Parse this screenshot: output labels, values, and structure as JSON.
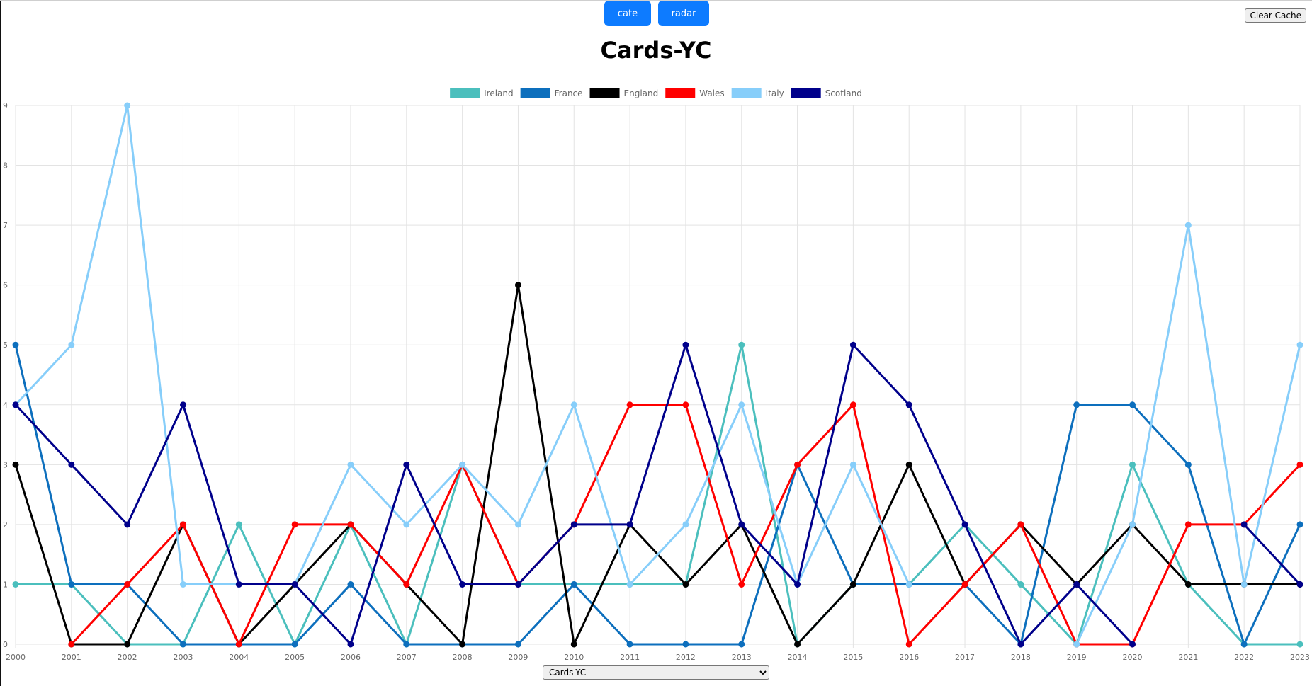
{
  "nav": {
    "cate_label": "cate",
    "radar_label": "radar"
  },
  "clear_cache_label": "Clear Cache",
  "title": "Cards-YC",
  "select": {
    "selected": "Cards-YC",
    "options": [
      "Cards-YC"
    ]
  },
  "chart_data": {
    "type": "line",
    "title": "Cards-YC",
    "xlabel": "",
    "ylabel": "",
    "ylim": [
      0,
      9
    ],
    "grid": true,
    "legend_position": "top",
    "x": [
      "2000",
      "2001",
      "2002",
      "2003",
      "2004",
      "2005",
      "2006",
      "2007",
      "2008",
      "2009",
      "2010",
      "2011",
      "2012",
      "2013",
      "2014",
      "2015",
      "2016",
      "2017",
      "2018",
      "2019",
      "2020",
      "2021",
      "2022",
      "2023"
    ],
    "series": [
      {
        "name": "Ireland",
        "color": "#4bbfbd",
        "values": [
          1,
          1,
          0,
          0,
          2,
          0,
          2,
          0,
          3,
          1,
          1,
          1,
          1,
          5,
          0,
          1,
          1,
          2,
          1,
          0,
          3,
          1,
          0,
          0
        ]
      },
      {
        "name": "France",
        "color": "#0d6fbd",
        "values": [
          5,
          1,
          1,
          0,
          0,
          0,
          1,
          0,
          0,
          0,
          1,
          0,
          0,
          0,
          3,
          1,
          1,
          1,
          0,
          4,
          4,
          3,
          0,
          2
        ]
      },
      {
        "name": "England",
        "color": "#000000",
        "values": [
          3,
          0,
          0,
          2,
          0,
          1,
          2,
          1,
          0,
          6,
          0,
          2,
          1,
          2,
          0,
          1,
          3,
          1,
          2,
          1,
          2,
          1,
          1,
          1
        ]
      },
      {
        "name": "Wales",
        "color": "#ff0000",
        "values": [
          null,
          0,
          1,
          2,
          0,
          2,
          2,
          1,
          3,
          1,
          2,
          4,
          4,
          1,
          3,
          4,
          0,
          1,
          2,
          0,
          0,
          2,
          2,
          3
        ]
      },
      {
        "name": "Italy",
        "color": "#87cefa",
        "values": [
          4,
          5,
          9,
          1,
          1,
          1,
          3,
          2,
          3,
          2,
          4,
          1,
          2,
          4,
          1,
          3,
          1,
          null,
          null,
          0,
          2,
          7,
          1,
          5
        ]
      },
      {
        "name": "Scotland",
        "color": "#00008b",
        "values": [
          4,
          3,
          2,
          4,
          1,
          1,
          0,
          3,
          1,
          1,
          2,
          2,
          5,
          2,
          1,
          5,
          4,
          2,
          0,
          1,
          0,
          null,
          2,
          1
        ]
      }
    ]
  }
}
